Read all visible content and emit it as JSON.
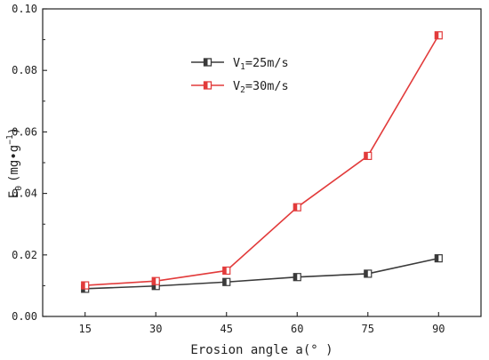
{
  "chart_data": {
    "type": "line",
    "x": [
      15,
      30,
      45,
      60,
      75,
      90
    ],
    "xlabel": "Erosion angle a(° )",
    "ylabel_main": "E",
    "ylabel_sub": "0",
    "ylabel_units_pre": "(mg•g",
    "ylabel_units_sup": "−1",
    "ylabel_units_post": ")",
    "xlim": [
      6,
      99
    ],
    "ylim": [
      0.0,
      0.1
    ],
    "xticks": [
      15,
      30,
      45,
      60,
      75,
      90
    ],
    "yticks": [
      0.0,
      0.02,
      0.04,
      0.06,
      0.08,
      0.1
    ],
    "ytick_labels": [
      "0.00",
      "0.02",
      "0.04",
      "0.06",
      "0.08",
      "0.10"
    ],
    "grid": false,
    "legend_position": "upper-center",
    "series": [
      {
        "name_main": "V",
        "name_sub": "1",
        "name_rest": "=25m/s",
        "color": "#3a3a3a",
        "values": [
          0.009,
          0.0099,
          0.0112,
          0.0128,
          0.0139,
          0.0189
        ]
      },
      {
        "name_main": "V",
        "name_sub": "2",
        "name_rest": "=30m/s",
        "color": "#e23b3b",
        "values": [
          0.0101,
          0.0115,
          0.0149,
          0.0355,
          0.0522,
          0.0914
        ]
      }
    ]
  }
}
